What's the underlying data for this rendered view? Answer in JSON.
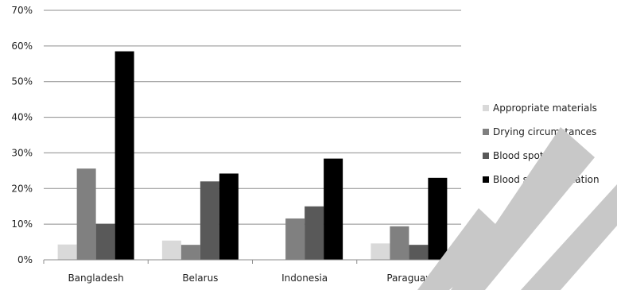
{
  "chart_data": {
    "type": "bar",
    "categories": [
      "Bangladesh",
      "Belarus",
      "Indonesia",
      "Paraguay"
    ],
    "series": [
      {
        "name": "Appropriate materials",
        "color": "#d9d9d9",
        "values": [
          4.3,
          5.4,
          0,
          4.6
        ]
      },
      {
        "name": "Drying circumstances",
        "color": "#808080",
        "values": [
          25.6,
          4.2,
          11.6,
          9.4
        ]
      },
      {
        "name": "Blood spot volume",
        "color": "#595959",
        "values": [
          10.1,
          22.0,
          15.0,
          4.2
        ]
      },
      {
        "name": "Blood spot application",
        "color": "#000000",
        "values": [
          58.5,
          24.2,
          28.4,
          23.0
        ]
      }
    ],
    "y_ticks": [
      "0%",
      "10%",
      "20%",
      "30%",
      "40%",
      "50%",
      "60%",
      "70%"
    ],
    "ylim": [
      0,
      70
    ],
    "grid": true,
    "legend_position": "right"
  }
}
